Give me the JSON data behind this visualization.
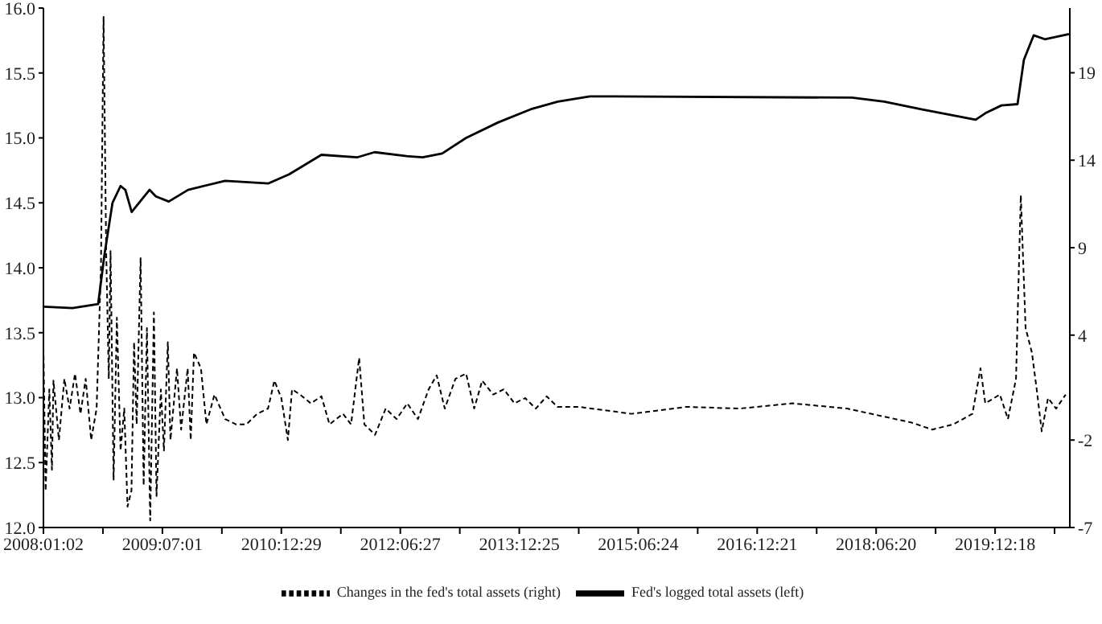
{
  "chart_data": {
    "type": "line",
    "xlim": [
      "2008-01-02",
      "2020-11-25"
    ],
    "xticks": [
      {
        "value": "2008-01-02",
        "label": "2008:01:02"
      },
      {
        "value": "2008-10-01",
        "label": null
      },
      {
        "value": "2009-07-01",
        "label": "2009:07:01"
      },
      {
        "value": "2010-03-31",
        "label": null
      },
      {
        "value": "2010-12-29",
        "label": "2010:12:29"
      },
      {
        "value": "2011-09-28",
        "label": null
      },
      {
        "value": "2012-06-27",
        "label": "2012:06:27"
      },
      {
        "value": "2013-03-27",
        "label": null
      },
      {
        "value": "2013-12-25",
        "label": "2013:12:25"
      },
      {
        "value": "2014-09-24",
        "label": null
      },
      {
        "value": "2015-06-24",
        "label": "2015:06:24"
      },
      {
        "value": "2016-03-23",
        "label": null
      },
      {
        "value": "2016-12-21",
        "label": "2016:12:21"
      },
      {
        "value": "2017-09-20",
        "label": null
      },
      {
        "value": "2018-06-20",
        "label": "2018:06:20"
      },
      {
        "value": "2019-03-20",
        "label": null
      },
      {
        "value": "2019-12-18",
        "label": "2019:12:18"
      },
      {
        "value": "2020-09-16",
        "label": null
      }
    ],
    "ylim": [
      12,
      16
    ],
    "yticks": [
      {
        "value": 12,
        "label": "12.0"
      },
      {
        "value": 12.5,
        "label": "12.5"
      },
      {
        "value": 13,
        "label": "13.0"
      },
      {
        "value": 13.5,
        "label": "13.5"
      },
      {
        "value": 14,
        "label": "14.0"
      },
      {
        "value": 14.5,
        "label": "14.5"
      },
      {
        "value": 15,
        "label": "15.0"
      },
      {
        "value": 15.5,
        "label": "15.5"
      },
      {
        "value": 16,
        "label": "16.0"
      }
    ],
    "y2lim": [
      -7,
      22.7
    ],
    "y2ticks": [
      -7,
      -2,
      4,
      9,
      14,
      19
    ],
    "legend": "bottom",
    "grid": false,
    "marker": "none",
    "series": [
      {
        "name": "Fed's logged total assets (left)",
        "color": "#000000",
        "line_style": "solid",
        "x": [
          "2008-01-02",
          "2008-05-14",
          "2008-09-09",
          "2008-10-08",
          "2008-11-14",
          "2008-12-21",
          "2009-01-12",
          "2009-02-10",
          "2009-05-03",
          "2009-06-01",
          "2009-07-30",
          "2009-10-27",
          "2010-04-15",
          "2010-10-31",
          "2011-02-03",
          "2011-07-01",
          "2011-12-11",
          "2012-03-01",
          "2012-07-26",
          "2012-10-08",
          "2013-01-05",
          "2013-04-25",
          "2013-09-20",
          "2014-02-15",
          "2014-06-20",
          "2014-11-14",
          "2018-03-01",
          "2018-07-27",
          "2019-01-13",
          "2019-09-20",
          "2019-11-03",
          "2020-01-16",
          "2020-03-30",
          "2020-04-28",
          "2020-06-12",
          "2020-08-02",
          "2020-11-21"
        ],
        "values": [
          13.7,
          13.69,
          13.72,
          14.1,
          14.5,
          14.63,
          14.6,
          14.43,
          14.6,
          14.55,
          14.51,
          14.6,
          14.67,
          14.65,
          14.72,
          14.87,
          14.85,
          14.89,
          14.86,
          14.85,
          14.88,
          15.0,
          15.12,
          15.22,
          15.28,
          15.32,
          15.31,
          15.28,
          15.22,
          15.14,
          15.19,
          15.25,
          15.26,
          15.6,
          15.79,
          15.76,
          15.8
        ]
      },
      {
        "name": "Changes in the fed's total assets (right)",
        "color": "#000000",
        "line_style": "dashed",
        "axis": "y2",
        "x": [
          "2008-01-02",
          "2008-01-12",
          "2008-01-29",
          "2008-02-10",
          "2008-02-17",
          "2008-03-13",
          "2008-04-07",
          "2008-05-01",
          "2008-05-26",
          "2008-06-20",
          "2008-07-14",
          "2008-08-08",
          "2008-09-02",
          "2008-09-22",
          "2008-10-04",
          "2008-10-16",
          "2008-10-28",
          "2008-11-05",
          "2008-11-19",
          "2008-12-04",
          "2008-12-21",
          "2009-01-07",
          "2009-01-22",
          "2009-02-09",
          "2009-02-21",
          "2009-03-05",
          "2009-03-23",
          "2009-04-06",
          "2009-04-21",
          "2009-05-06",
          "2009-05-23",
          "2009-06-04",
          "2009-06-24",
          "2009-07-08",
          "2009-07-26",
          "2009-08-07",
          "2009-09-06",
          "2009-09-25",
          "2009-10-25",
          "2009-11-08",
          "2009-11-23",
          "2009-12-25",
          "2010-01-19",
          "2010-02-25",
          "2010-04-15",
          "2010-06-03",
          "2010-07-22",
          "2010-09-09",
          "2010-10-29",
          "2010-11-27",
          "2010-12-29",
          "2011-01-28",
          "2011-02-16",
          "2011-03-25",
          "2011-05-13",
          "2011-07-01",
          "2011-08-07",
          "2011-10-08",
          "2011-11-14",
          "2011-12-21",
          "2012-01-14",
          "2012-03-03",
          "2012-04-21",
          "2012-06-10",
          "2012-07-29",
          "2012-09-16",
          "2012-11-04",
          "2012-12-11",
          "2013-01-17",
          "2013-03-07",
          "2013-04-25",
          "2013-06-01",
          "2013-07-08",
          "2013-08-27",
          "2013-10-15",
          "2013-12-03",
          "2014-01-21",
          "2014-03-11",
          "2014-04-30",
          "2014-06-18",
          "2014-09-24",
          "2015-05-25",
          "2016-01-31",
          "2016-10-01",
          "2017-06-01",
          "2018-02-07",
          "2018-11-29",
          "2019-03-05",
          "2019-06-09",
          "2019-09-05",
          "2019-10-12",
          "2019-11-03",
          "2020-01-09",
          "2020-02-15",
          "2020-03-23",
          "2020-04-14",
          "2020-05-06",
          "2020-06-04",
          "2020-06-27",
          "2020-07-19",
          "2020-08-17",
          "2020-09-23",
          "2020-11-06"
        ],
        "values": [
          3.3,
          -4.9,
          0.9,
          -3.7,
          1.4,
          -2.0,
          1.5,
          -0.2,
          1.8,
          -0.5,
          1.5,
          -2.0,
          -0.2,
          7.9,
          22.2,
          8.8,
          1.5,
          8.8,
          -4.3,
          5.0,
          -2.6,
          -0.2,
          -5.8,
          -4.9,
          3.6,
          -1.1,
          8.4,
          -4.6,
          4.4,
          -6.6,
          5.3,
          -5.2,
          0.9,
          -2.6,
          3.6,
          -2.0,
          2.1,
          -1.4,
          2.1,
          -2.0,
          3.0,
          2.1,
          -1.1,
          0.6,
          -0.8,
          -1.1,
          -1.1,
          -0.5,
          -0.2,
          1.4,
          0.4,
          -2.0,
          0.9,
          0.6,
          0.1,
          0.5,
          -1.1,
          -0.5,
          -1.1,
          2.7,
          -1.1,
          -1.7,
          -0.2,
          -0.8,
          0.1,
          -0.8,
          0.9,
          1.7,
          -0.2,
          1.5,
          1.8,
          -0.2,
          1.4,
          0.6,
          0.9,
          0.1,
          0.4,
          -0.2,
          0.5,
          -0.1,
          -0.1,
          -0.5,
          -0.1,
          -0.2,
          0.1,
          -0.2,
          -1.0,
          -1.4,
          -1.1,
          -0.5,
          2.1,
          0.1,
          0.6,
          -0.8,
          1.5,
          12.0,
          4.4,
          3.0,
          0.8,
          -1.5,
          0.4,
          -0.2,
          0.6
        ]
      }
    ]
  }
}
